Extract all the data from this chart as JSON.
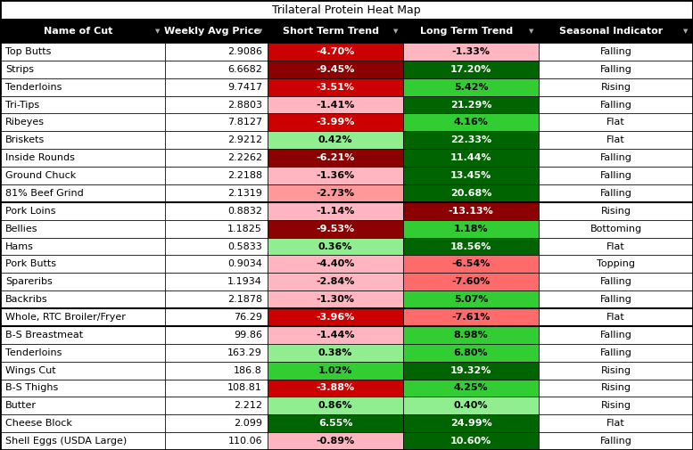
{
  "title": "Trilateral Protein Heat Map",
  "columns": [
    "Name of Cut",
    "Weekly Avg Price",
    "Short Term Trend",
    "Long Term Trend",
    "Seasonal Indicator"
  ],
  "rows": [
    [
      "Top Butts",
      "2.9086",
      "-4.70%",
      "-1.33%",
      "Falling"
    ],
    [
      "Strips",
      "6.6682",
      "-9.45%",
      "17.20%",
      "Falling"
    ],
    [
      "Tenderloins",
      "9.7417",
      "-3.51%",
      "5.42%",
      "Rising"
    ],
    [
      "Tri-Tips",
      "2.8803",
      "-1.41%",
      "21.29%",
      "Falling"
    ],
    [
      "Ribeyes",
      "7.8127",
      "-3.99%",
      "4.16%",
      "Flat"
    ],
    [
      "Briskets",
      "2.9212",
      "0.42%",
      "22.33%",
      "Flat"
    ],
    [
      "Inside Rounds",
      "2.2262",
      "-6.21%",
      "11.44%",
      "Falling"
    ],
    [
      "Ground Chuck",
      "2.2188",
      "-1.36%",
      "13.45%",
      "Falling"
    ],
    [
      "81% Beef Grind",
      "2.1319",
      "-2.73%",
      "20.68%",
      "Falling"
    ],
    [
      "Pork Loins",
      "0.8832",
      "-1.14%",
      "-13.13%",
      "Rising"
    ],
    [
      "Bellies",
      "1.1825",
      "-9.53%",
      "1.18%",
      "Bottoming"
    ],
    [
      "Hams",
      "0.5833",
      "0.36%",
      "18.56%",
      "Flat"
    ],
    [
      "Pork Butts",
      "0.9034",
      "-4.40%",
      "-6.54%",
      "Topping"
    ],
    [
      "Spareribs",
      "1.1934",
      "-2.84%",
      "-7.60%",
      "Falling"
    ],
    [
      "Backribs",
      "2.1878",
      "-1.30%",
      "5.07%",
      "Falling"
    ],
    [
      "Whole, RTC Broiler/Fryer",
      "76.29",
      "-3.96%",
      "-7.61%",
      "Flat"
    ],
    [
      "B-S Breastmeat",
      "99.86",
      "-1.44%",
      "8.98%",
      "Falling"
    ],
    [
      "Tenderloins",
      "163.29",
      "0.38%",
      "6.80%",
      "Falling"
    ],
    [
      "Wings Cut",
      "186.8",
      "1.02%",
      "19.32%",
      "Rising"
    ],
    [
      "B-S Thighs",
      "108.81",
      "-3.88%",
      "4.25%",
      "Rising"
    ],
    [
      "Butter",
      "2.212",
      "0.86%",
      "0.40%",
      "Rising"
    ],
    [
      "Cheese Block",
      "2.099",
      "6.55%",
      "24.99%",
      "Flat"
    ],
    [
      "Shell Eggs (USDA Large)",
      "110.06",
      "-0.89%",
      "10.60%",
      "Falling"
    ]
  ],
  "header_bg": "#000000",
  "header_fg": "#ffffff",
  "title_fontsize": 9,
  "header_fontsize": 8,
  "cell_fontsize": 8,
  "fig_width": 7.77,
  "fig_height": 5.05,
  "dpi": 100
}
